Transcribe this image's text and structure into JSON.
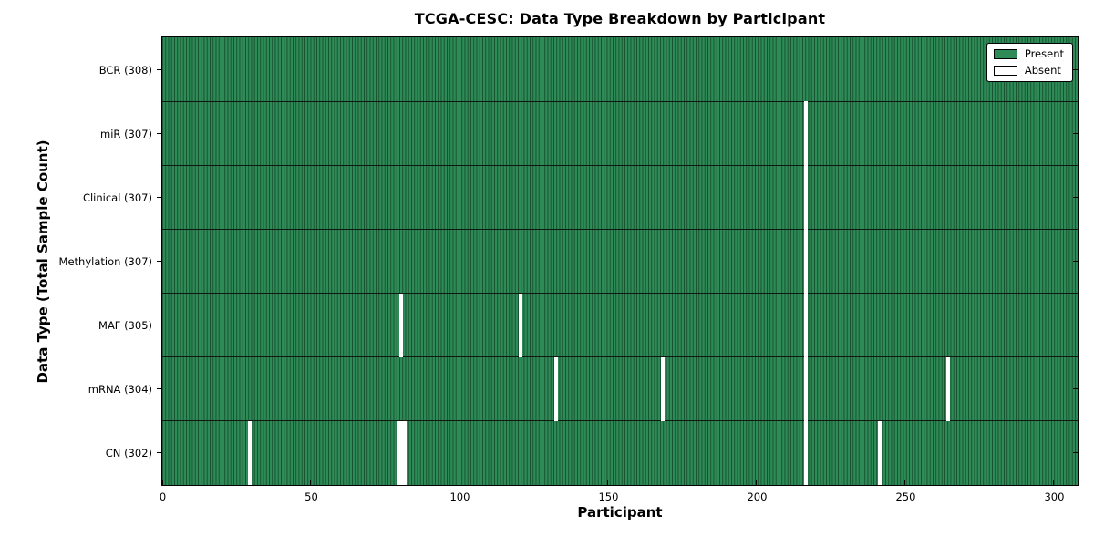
{
  "figure": {
    "background_color": "#ffffff"
  },
  "chart_data": {
    "type": "heatmap",
    "title": "TCGA-CESC: Data Type Breakdown by Participant",
    "xlabel": "Participant",
    "ylabel": "Data Type (Total Sample Count)",
    "xlim": [
      0,
      308
    ],
    "x_ticks": [
      0,
      50,
      100,
      150,
      200,
      250,
      300
    ],
    "x_tick_labels": [
      "0",
      "50",
      "100",
      "150",
      "200",
      "250",
      "300"
    ],
    "grid": false,
    "legend_position": "upper right",
    "legend": [
      {
        "label": "Present",
        "color": "#2e8b57"
      },
      {
        "label": "Absent",
        "color": "#ffffff"
      }
    ],
    "colors": {
      "present": "#2e8b57",
      "absent": "#ffffff",
      "bar_edge": "#17512f",
      "row_divider": "#101810",
      "axis": "#000000"
    },
    "total_participants": 308,
    "rows": [
      {
        "label": "BCR (308)",
        "data_type": "BCR",
        "present_count": 308,
        "absent_participants": []
      },
      {
        "label": "miR (307)",
        "data_type": "miR",
        "present_count": 307,
        "absent_participants": [
          216
        ]
      },
      {
        "label": "Clinical (307)",
        "data_type": "Clinical",
        "present_count": 307,
        "absent_participants": [
          216
        ]
      },
      {
        "label": "Methylation (307)",
        "data_type": "Methylation",
        "present_count": 307,
        "absent_participants": [
          216
        ]
      },
      {
        "label": "MAF (305)",
        "data_type": "MAF",
        "present_count": 305,
        "absent_participants": [
          80,
          120,
          216
        ]
      },
      {
        "label": "mRNA (304)",
        "data_type": "mRNA",
        "present_count": 304,
        "absent_participants": [
          132,
          168,
          216,
          264
        ]
      },
      {
        "label": "CN (302)",
        "data_type": "CN",
        "present_count": 302,
        "absent_participants": [
          29,
          79,
          80,
          81,
          216,
          241
        ]
      }
    ]
  }
}
